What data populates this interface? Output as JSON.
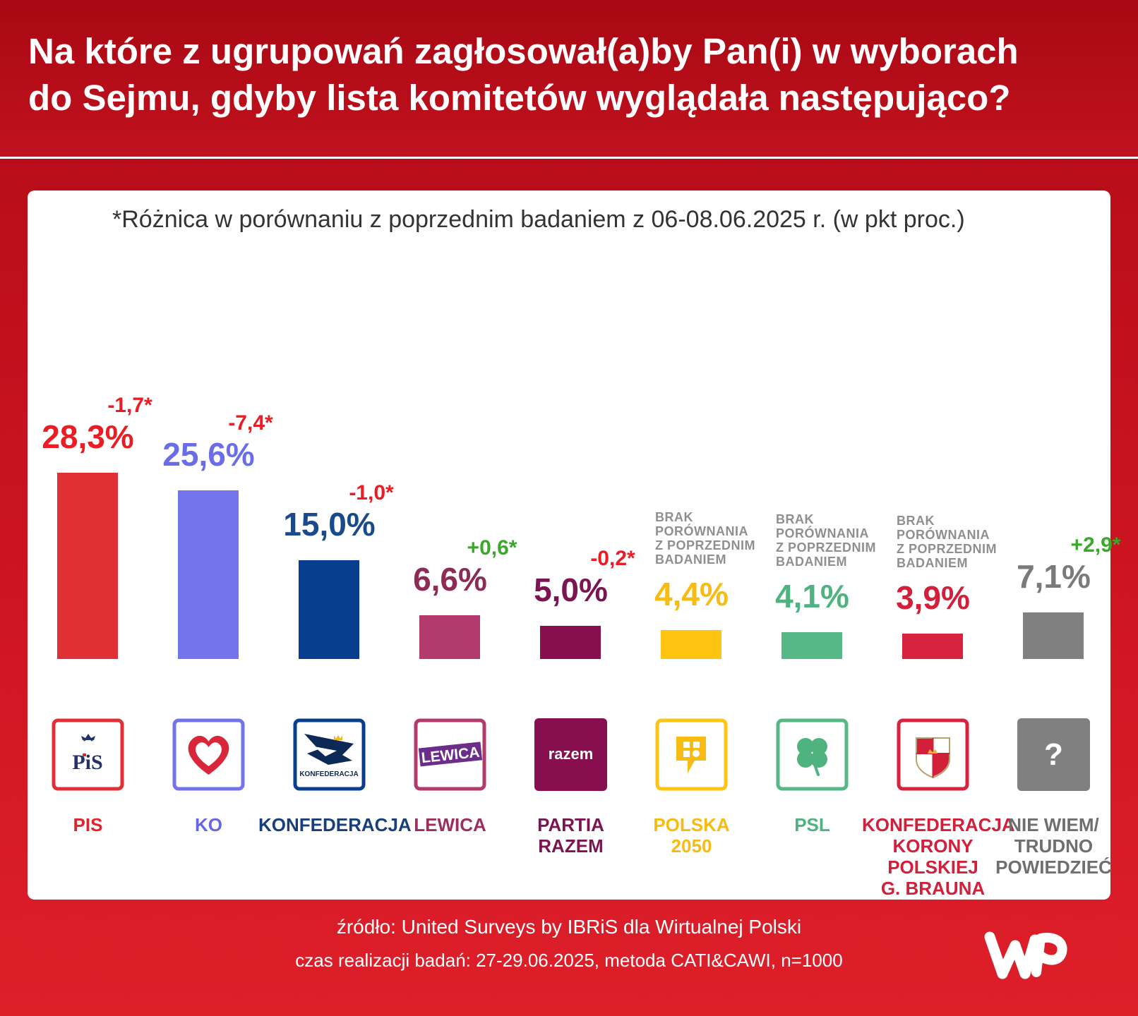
{
  "title": "Na które z ugrupowań zagłosował(a)by Pan(i) w wyborach\ndo Sejmu, gdyby lista komitetów wyglądała następująco?",
  "footer": {
    "source": "źródło: United Surveys by IBRiS dla Wirtualnej Polski",
    "method": "czas realizacji badań: 27-29.06.2025, metoda CATI&CAWI, n=1000"
  },
  "chart_data": {
    "type": "bar",
    "subtitle": "*Różnica w porównaniu z poprzednim badaniem z 06-08.06.2025 r. (w pkt proc.)",
    "categories": [
      "PIS",
      "KO",
      "KONFEDERACJA",
      "LEWICA",
      "PARTIA RAZEM",
      "POLSKA 2050",
      "PSL",
      "KONFEDERACJA KORONY POLSKIEJ G. BRAUNA",
      "NIE WIEM/ TRUDNO POWIEDZIEĆ"
    ],
    "values": [
      28.3,
      25.6,
      15.0,
      6.6,
      5.0,
      4.4,
      4.1,
      3.9,
      7.1
    ],
    "unit": "%",
    "ylim": [
      0,
      28.3
    ],
    "grid": false,
    "no_comparison_label": [
      "BRAK",
      "PORÓWNANIA",
      "Z POPRZEDNIM",
      "BADANIEM"
    ],
    "items": [
      {
        "label_lines": [
          "PIS"
        ],
        "value": 28.3,
        "value_label": "28,3%",
        "change": "-1,7*",
        "color": "#e03035",
        "value_color": "#ea1c24",
        "change_color": "#ea1c24",
        "label_color": "#e3232a",
        "logo": "pis-logo"
      },
      {
        "label_lines": [
          "KO"
        ],
        "value": 25.6,
        "value_label": "25,6%",
        "change": "-7,4*",
        "color": "#7374ec",
        "value_color": "#6b6ce8",
        "change_color": "#ea1c24",
        "label_color": "#6667e6",
        "logo": "heart-logo"
      },
      {
        "label_lines": [
          "KONFEDERACJA"
        ],
        "value": 15.0,
        "value_label": "15,0%",
        "change": "-1,0*",
        "color": "#073f8e",
        "value_color": "#1b4a8c",
        "change_color": "#ea1c24",
        "label_color": "#163f7c",
        "logo": "konfederacja-logo"
      },
      {
        "label_lines": [
          "LEWICA"
        ],
        "value": 6.6,
        "value_label": "6,6%",
        "change": "+0,6*",
        "color": "#b33a6c",
        "value_color": "#8e2a56",
        "change_color": "#3aa82b",
        "label_color": "#9c2f5e",
        "logo": "lewica-logo",
        "logo_text": "LEWICA"
      },
      {
        "label_lines": [
          "PARTIA",
          "RAZEM"
        ],
        "value": 5.0,
        "value_label": "5,0%",
        "change": "-0,2*",
        "color": "#870f4f",
        "value_color": "#7b1450",
        "change_color": "#ea1c24",
        "label_color": "#7b1450",
        "logo": "razem-logo",
        "logo_text": "razem"
      },
      {
        "label_lines": [
          "POLSKA",
          "2050"
        ],
        "value": 4.4,
        "value_label": "4,4%",
        "change": null,
        "color": "#ffc412",
        "value_color": "#f7bb12",
        "change_color": null,
        "label_color": "#f7bb12",
        "logo": "polska2050-logo"
      },
      {
        "label_lines": [
          "PSL"
        ],
        "value": 4.1,
        "value_label": "4,1%",
        "change": null,
        "color": "#55b886",
        "value_color": "#4fb37f",
        "change_color": null,
        "label_color": "#4fb37f",
        "logo": "clover-logo"
      },
      {
        "label_lines": [
          "KONFEDERACJA",
          "KORONY",
          "POLSKIEJ",
          "G. BRAUNA"
        ],
        "value": 3.9,
        "value_label": "3,9%",
        "change": null,
        "color": "#d7233d",
        "value_color": "#d2203b",
        "change_color": null,
        "label_color": "#d2203b",
        "logo": "crest-logo"
      },
      {
        "label_lines": [
          "NIE WIEM/",
          "TRUDNO",
          "POWIEDZIEĆ"
        ],
        "value": 7.1,
        "value_label": "7,1%",
        "change": "+2,9*",
        "color": "#808080",
        "value_color": "#7a7a7a",
        "change_color": "#3aa82b",
        "label_color": "#6f6f6f",
        "logo": "question-logo",
        "logo_text": "?"
      }
    ]
  }
}
